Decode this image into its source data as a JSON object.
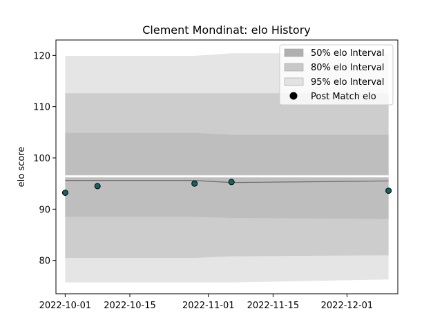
{
  "chart_data": {
    "type": "line",
    "title": "Clement Mondinat: elo History",
    "xlabel": "",
    "ylabel": "elo score",
    "x_dates": [
      "2022-10-01",
      "2022-10-08",
      "2022-10-29",
      "2022-11-06",
      "2022-12-10"
    ],
    "post_match_elo": [
      93.2,
      94.5,
      95.0,
      95.3,
      93.6
    ],
    "mean_line": [
      95.6,
      95.6,
      95.6,
      95.2,
      95.5
    ],
    "bands": [
      {
        "name": "95% elo Interval",
        "upper": [
          119.9,
          119.9,
          119.9,
          120.4,
          120.4
        ],
        "lower": [
          75.7,
          75.7,
          75.7,
          75.7,
          76.3
        ],
        "color": "#e5e5e5"
      },
      {
        "name": "80% elo Interval",
        "upper": [
          112.6,
          112.6,
          112.6,
          112.6,
          112.6
        ],
        "lower": [
          80.5,
          80.5,
          80.5,
          80.8,
          81.0
        ],
        "color": "#cdcdcd"
      },
      {
        "name": "50% elo Interval",
        "upper": [
          104.9,
          104.9,
          104.9,
          104.5,
          104.5
        ],
        "lower": [
          88.5,
          88.5,
          88.5,
          88.3,
          88.1
        ],
        "color": "#bebebe"
      }
    ],
    "white_gap": {
      "top": 96.6,
      "bottom": 96.2
    },
    "xlim": [
      "2022-09-29",
      "2022-12-12"
    ],
    "ylim": [
      73.5,
      123.0
    ],
    "x_ticks": [
      {
        "date": "2022-10-01",
        "label": "2022-10-01"
      },
      {
        "date": "2022-10-15",
        "label": "2022-10-15"
      },
      {
        "date": "2022-11-01",
        "label": "2022-11-01"
      },
      {
        "date": "2022-11-15",
        "label": "2022-11-15"
      },
      {
        "date": "2022-12-01",
        "label": "2022-12-01"
      }
    ],
    "y_ticks": [
      80,
      90,
      100,
      110,
      120
    ],
    "legend": {
      "placement": "top-right",
      "items": [
        {
          "label": "50% elo Interval",
          "kind": "patch",
          "color": "#b0b0b0"
        },
        {
          "label": "80% elo Interval",
          "kind": "patch",
          "color": "#c8c8c8"
        },
        {
          "label": "95% elo Interval",
          "kind": "patch",
          "color": "#e2e2e2"
        },
        {
          "label": "Post Match elo",
          "kind": "marker",
          "color": "#000000"
        }
      ]
    },
    "colors": {
      "line": "#707070",
      "marker_fill": "#0f6464",
      "marker_edge": "#000000"
    }
  }
}
